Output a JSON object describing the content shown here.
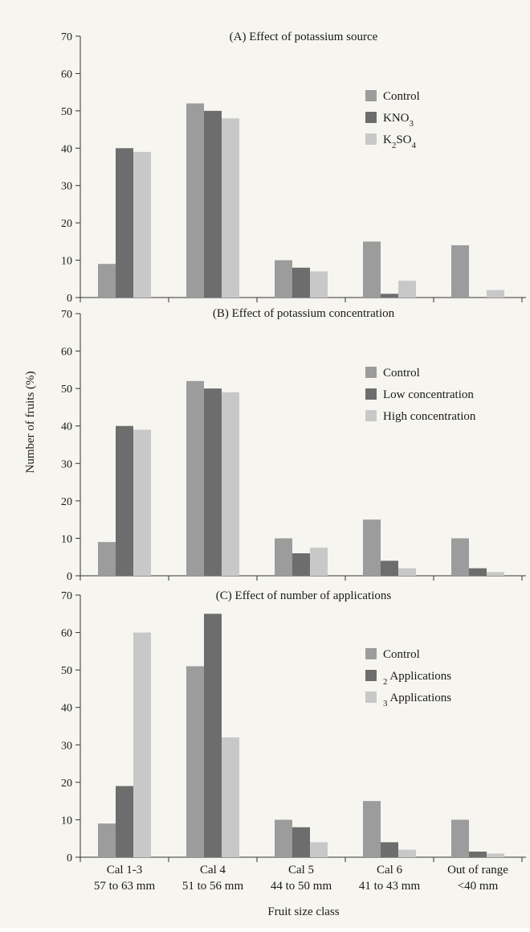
{
  "colors": {
    "background": "#f6f5f0",
    "axis": "#333333",
    "series": [
      "#9c9c9c",
      "#6d6d6d",
      "#c8c8c8"
    ]
  },
  "y_label": "Number of fruits (%)",
  "x_label": "Fruit size class",
  "category_labels": [
    [
      "Cal 1-3",
      "57 to 63 mm"
    ],
    [
      "Cal 4",
      "51 to 56 mm"
    ],
    [
      "Cal 5",
      "44 to 50 mm"
    ],
    [
      "Cal 6",
      "41 to 43 mm"
    ],
    [
      "Out of range",
      "<40 mm"
    ]
  ],
  "chart_data": [
    {
      "type": "bar",
      "title": "(A) Effect of potassium source",
      "categories": [
        "Cal 1-3 57 to 63 mm",
        "Cal 4 51 to 56 mm",
        "Cal 5 44 to 50 mm",
        "Cal 6 41 to 43 mm",
        "Out of range <40 mm"
      ],
      "ylim": [
        0,
        70
      ],
      "yticks": [
        0,
        10,
        20,
        30,
        40,
        50,
        60,
        70
      ],
      "legend_position": "right",
      "series": [
        {
          "name": "Control",
          "values": [
            9,
            52,
            10,
            15,
            14
          ]
        },
        {
          "name": "KNO3",
          "values": [
            40,
            50,
            8,
            1,
            0
          ]
        },
        {
          "name": "K2SO4",
          "values": [
            39,
            48,
            7,
            4.5,
            2
          ]
        }
      ]
    },
    {
      "type": "bar",
      "title": "(B) Effect of potassium concentration",
      "categories": [
        "Cal 1-3 57 to 63 mm",
        "Cal 4 51 to 56 mm",
        "Cal 5 44 to 50 mm",
        "Cal 6 41 to 43 mm",
        "Out of range <40 mm"
      ],
      "ylim": [
        0,
        70
      ],
      "yticks": [
        0,
        10,
        20,
        30,
        40,
        50,
        60,
        70
      ],
      "legend_position": "right",
      "series": [
        {
          "name": "Control",
          "values": [
            9,
            52,
            10,
            15,
            10
          ]
        },
        {
          "name": "Low concentration",
          "values": [
            40,
            50,
            6,
            4,
            2
          ]
        },
        {
          "name": "High concentration",
          "values": [
            39,
            49,
            7.5,
            2,
            1
          ]
        }
      ]
    },
    {
      "type": "bar",
      "title": "(C) Effect of number of applications",
      "categories": [
        "Cal 1-3 57 to 63 mm",
        "Cal 4 51 to 56 mm",
        "Cal 5 44 to 50 mm",
        "Cal 6 41 to 43 mm",
        "Out of range <40 mm"
      ],
      "ylim": [
        0,
        70
      ],
      "yticks": [
        0,
        10,
        20,
        30,
        40,
        50,
        60,
        70
      ],
      "legend_position": "right",
      "series": [
        {
          "name": "Control",
          "values": [
            9,
            51,
            10,
            15,
            10
          ]
        },
        {
          "name": "2 Applications",
          "values": [
            19,
            65,
            8,
            4,
            1.5
          ]
        },
        {
          "name": "3 Applications",
          "values": [
            60,
            32,
            4,
            2,
            1
          ]
        }
      ]
    }
  ]
}
